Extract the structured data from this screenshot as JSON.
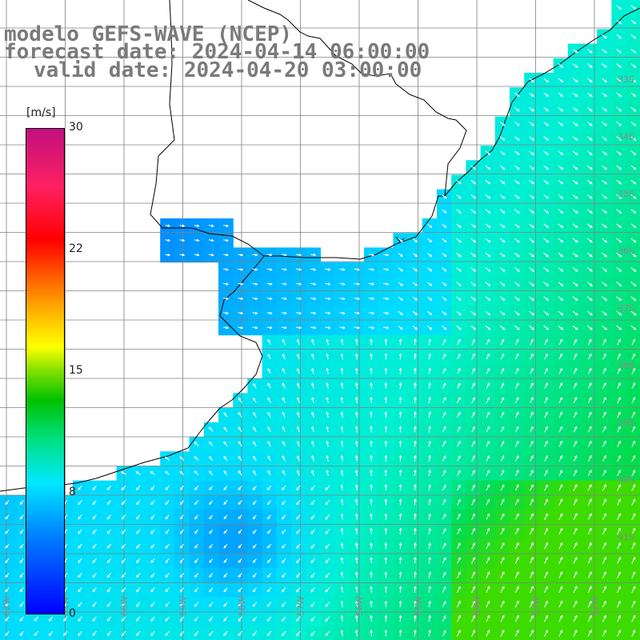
{
  "title": {
    "line1": "modelo GEFS-WAVE (NCEP)",
    "line2": "forecast date: 2024-04-14 06:00:00",
    "line3": "valid date: 2024-04-20 03:00:00"
  },
  "colorbar": {
    "unit": "[m/s]",
    "ticks": [
      "30",
      "22",
      "15",
      "8",
      "0"
    ],
    "tick_values": [
      30,
      22,
      15,
      8,
      0
    ],
    "min": 0,
    "max": 30
  },
  "lat_labels": [
    "33S",
    "34S",
    "35S",
    "36S",
    "37S",
    "38S",
    "39S",
    "40S",
    "41S"
  ],
  "lon_labels": [
    "62W",
    "61W",
    "60W",
    "59W",
    "58W",
    "57W",
    "56W",
    "55W",
    "54W",
    "53W",
    "52W"
  ],
  "colors": {
    "land": "#ffffff",
    "grid": "#808080",
    "coast": "#000000",
    "arrow": "#ffffff",
    "title_text": "#7a7a7a"
  }
}
